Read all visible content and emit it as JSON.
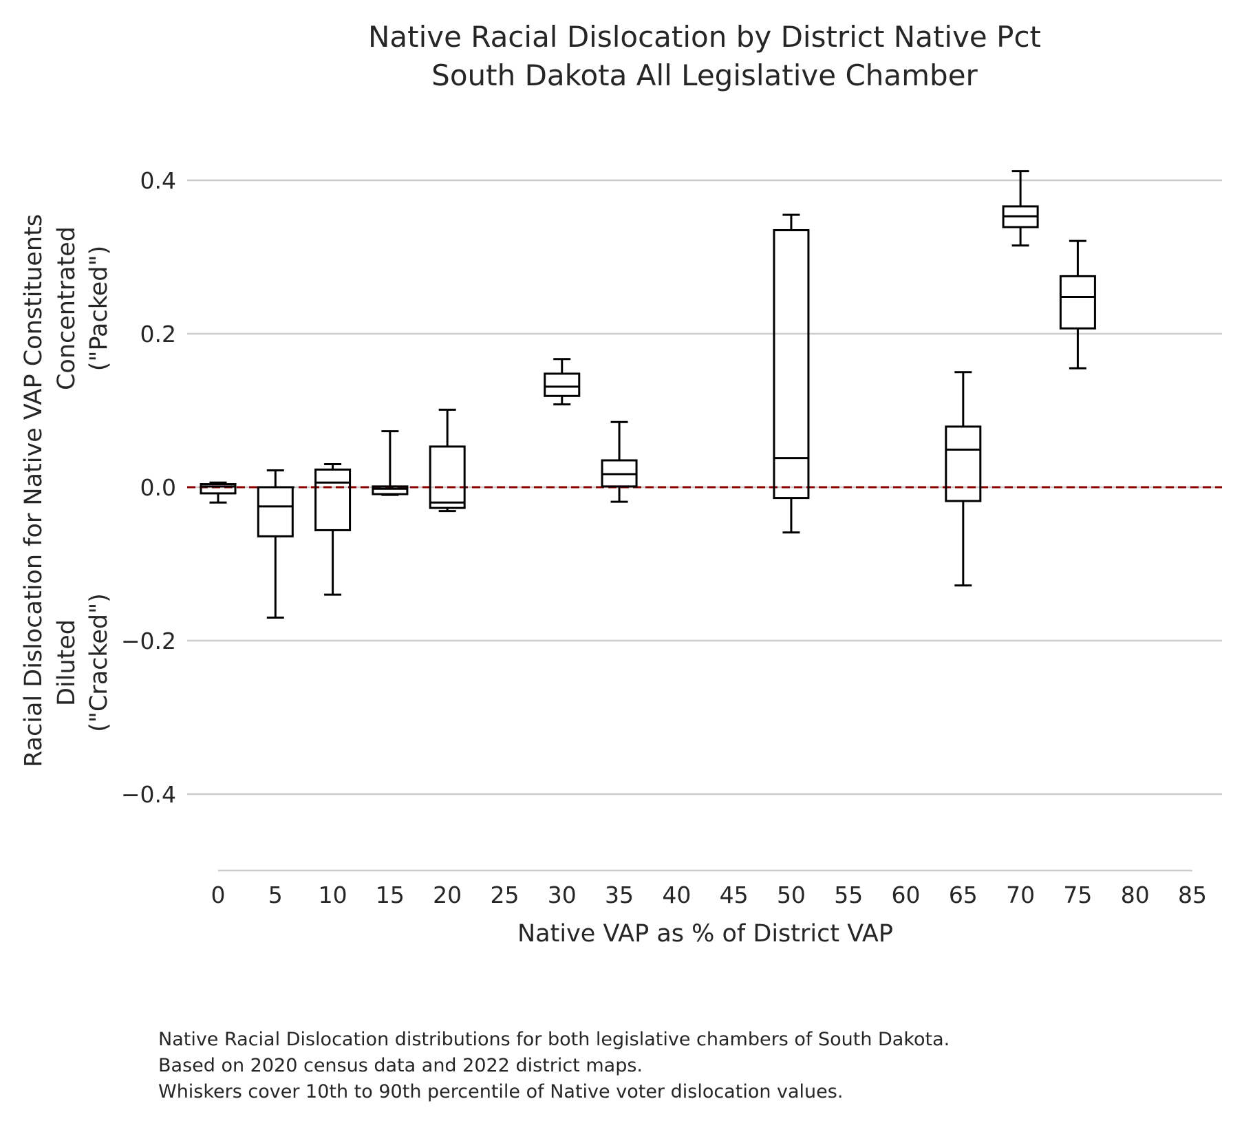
{
  "chart_data": {
    "type": "box",
    "title": [
      "Native Racial Dislocation by District Native Pct",
      "South Dakota All Legislative Chamber"
    ],
    "xlabel": "Native VAP as % of District VAP",
    "ylabel": [
      "Racial Dislocation for Native VAP Constituents",
      "Concentrated",
      "(\"Packed\")",
      "Diluted",
      "(\"Cracked\")"
    ],
    "x_ticks": [
      "0",
      "5",
      "10",
      "15",
      "20",
      "25",
      "30",
      "35",
      "40",
      "45",
      "50",
      "55",
      "60",
      "65",
      "70",
      "75",
      "80",
      "85"
    ],
    "y_ticks": [
      {
        "value": 0.4,
        "label": "0.4"
      },
      {
        "value": 0.2,
        "label": "0.2"
      },
      {
        "value": 0.0,
        "label": "0.0"
      },
      {
        "value": -0.2,
        "label": "−0.2"
      },
      {
        "value": -0.4,
        "label": "−0.4"
      }
    ],
    "xlim": [
      -2.5,
      87.5
    ],
    "ylim": [
      -0.5,
      0.45
    ],
    "grid": "horizontal",
    "reference_line": {
      "y": 0.0,
      "color": "#8b0000",
      "style": "dashed"
    },
    "boxes": [
      {
        "x": 0,
        "whislo": -0.02,
        "q1": -0.008,
        "med": 0.001,
        "q3": 0.004,
        "whishi": 0.006
      },
      {
        "x": 5,
        "whislo": -0.17,
        "q1": -0.064,
        "med": -0.025,
        "q3": 0.0,
        "whishi": 0.022
      },
      {
        "x": 10,
        "whislo": -0.14,
        "q1": -0.056,
        "med": 0.006,
        "q3": 0.023,
        "whishi": 0.03
      },
      {
        "x": 15,
        "whislo": -0.01,
        "q1": -0.009,
        "med": -0.002,
        "q3": 0.001,
        "whishi": 0.073
      },
      {
        "x": 20,
        "whislo": -0.031,
        "q1": -0.027,
        "med": -0.02,
        "q3": 0.053,
        "whishi": 0.101
      },
      {
        "x": 30,
        "whislo": 0.108,
        "q1": 0.119,
        "med": 0.131,
        "q3": 0.148,
        "whishi": 0.167
      },
      {
        "x": 35,
        "whislo": -0.019,
        "q1": 0.001,
        "med": 0.017,
        "q3": 0.035,
        "whishi": 0.085
      },
      {
        "x": 50,
        "whislo": -0.059,
        "q1": -0.014,
        "med": 0.038,
        "q3": 0.335,
        "whishi": 0.355
      },
      {
        "x": 65,
        "whislo": -0.128,
        "q1": -0.018,
        "med": 0.049,
        "q3": 0.079,
        "whishi": 0.15
      },
      {
        "x": 70,
        "whislo": 0.315,
        "q1": 0.339,
        "med": 0.353,
        "q3": 0.366,
        "whishi": 0.412
      },
      {
        "x": 75,
        "whislo": 0.155,
        "q1": 0.207,
        "med": 0.248,
        "q3": 0.275,
        "whishi": 0.321
      }
    ],
    "colors": {
      "box": "#000000",
      "grid": "#cccccc",
      "reference": "#8b0000",
      "text": "#262626"
    }
  },
  "caption": [
    "Native Racial Dislocation distributions for both legislative chambers of South Dakota.",
    "Based on 2020 census data and 2022 district maps.",
    "Whiskers cover 10th to 90th percentile of Native voter dislocation values."
  ]
}
